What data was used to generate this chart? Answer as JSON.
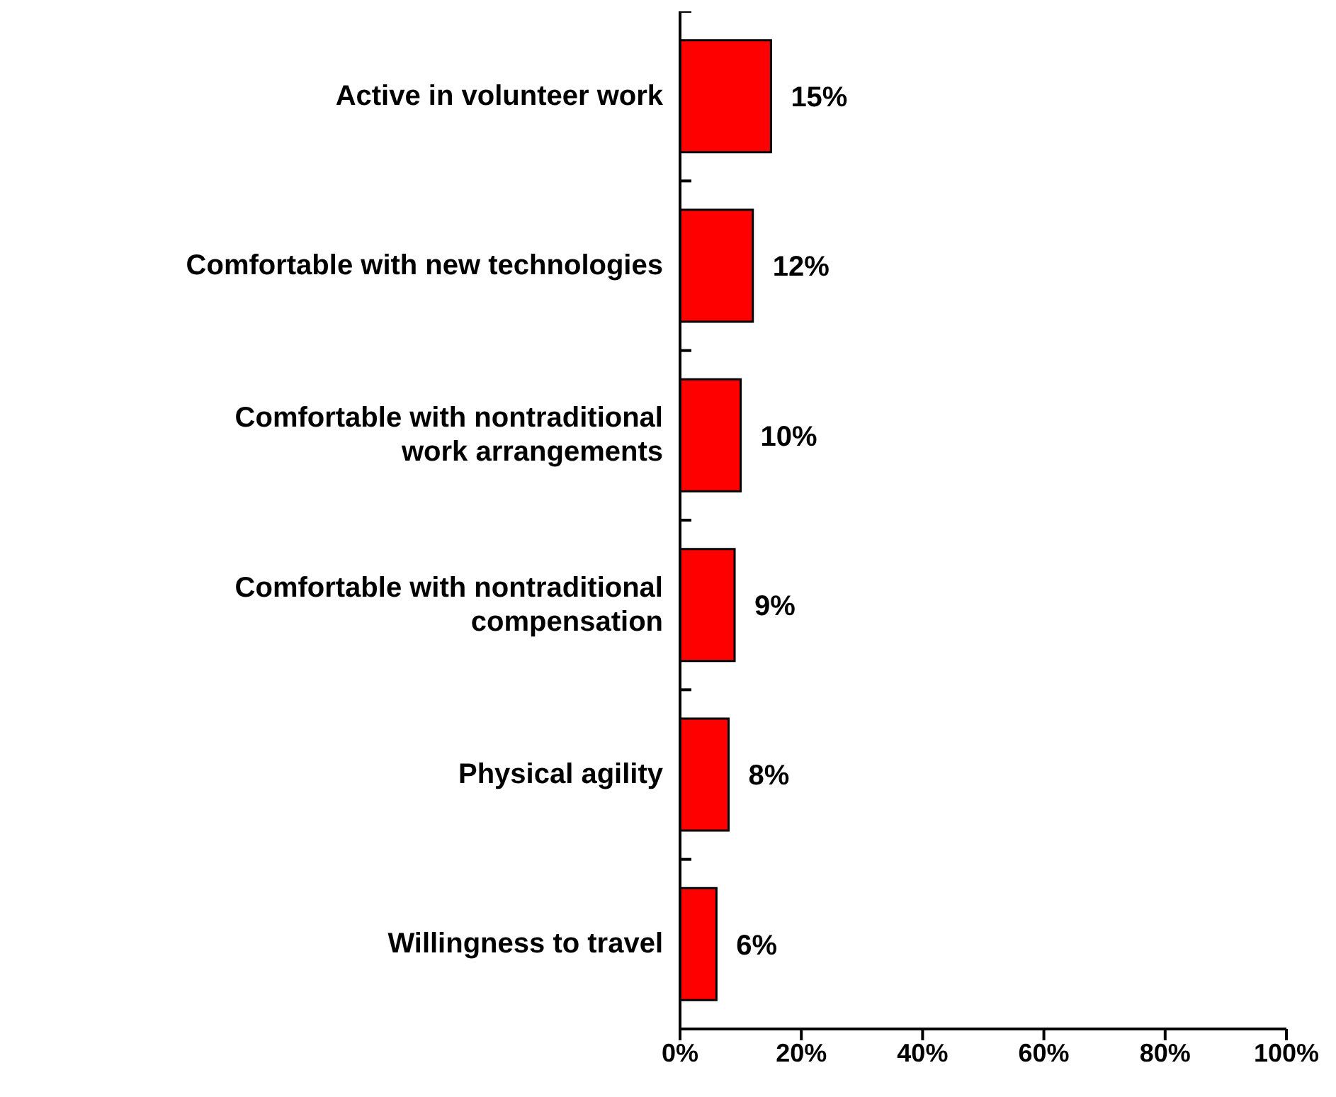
{
  "chart_data": {
    "type": "bar",
    "orientation": "horizontal",
    "categories": [
      "Active in volunteer work",
      "Comfortable with new technologies",
      "Comfortable with nontraditional work arrangements",
      "Comfortable with nontraditional compensation",
      "Physical agility",
      "Willingness to travel"
    ],
    "values": [
      15,
      12,
      10,
      9,
      8,
      6
    ],
    "value_labels": [
      "15%",
      "12%",
      "10%",
      "9%",
      "8%",
      "6%"
    ],
    "color": "#ff0000",
    "xlim": [
      0,
      100
    ],
    "xticks": [
      {
        "value": 0,
        "label": "0%"
      },
      {
        "value": 20,
        "label": "20%"
      },
      {
        "value": 40,
        "label": "40%"
      },
      {
        "value": 60,
        "label": "60%"
      },
      {
        "value": 80,
        "label": "80%"
      },
      {
        "value": 100,
        "label": "100%"
      }
    ],
    "grid": false,
    "legend": false
  }
}
